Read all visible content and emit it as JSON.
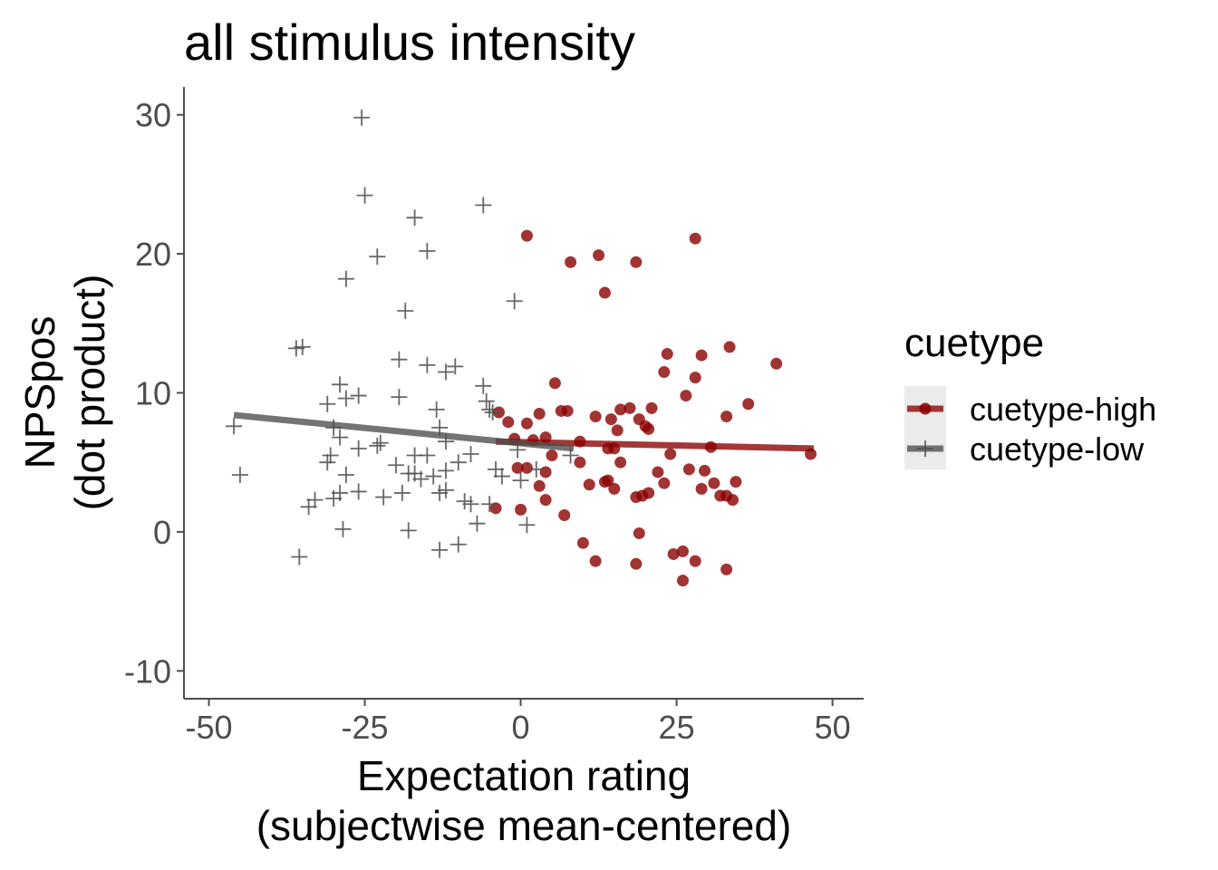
{
  "chart_data": {
    "type": "scatter",
    "title": "all stimulus intensity",
    "xlabel": [
      "Expectation rating",
      "(subjectwise mean-centered)"
    ],
    "ylabel": [
      "NPSpos",
      "(dot product)"
    ],
    "xlim": [
      -54,
      55
    ],
    "ylim": [
      -12,
      32
    ],
    "xticks": [
      -50,
      -25,
      0,
      25,
      50
    ],
    "xtick_labels": [
      "-50",
      "-25",
      "0",
      "25",
      "50"
    ],
    "yticks": [
      -10,
      0,
      10,
      20,
      30
    ],
    "ytick_labels": [
      "-10",
      "0",
      "10",
      "20",
      "30"
    ],
    "grid": false,
    "legend": {
      "title": "cuetype",
      "placement": "right"
    },
    "series": [
      {
        "name": "cuetype-high",
        "marker": "circle",
        "color": "#8B0000",
        "points": [
          [
            1,
            21.3
          ],
          [
            8,
            19.4
          ],
          [
            12.5,
            19.9
          ],
          [
            18.5,
            19.4
          ],
          [
            28,
            21.1
          ],
          [
            13.5,
            17.2
          ],
          [
            23.5,
            12.8
          ],
          [
            29,
            12.7
          ],
          [
            33.5,
            13.3
          ],
          [
            41,
            12.1
          ],
          [
            23,
            11.5
          ],
          [
            28,
            11.1
          ],
          [
            5.5,
            10.7
          ],
          [
            26.5,
            9.8
          ],
          [
            36.5,
            9.2
          ],
          [
            33,
            8.3
          ],
          [
            -3.5,
            8.6
          ],
          [
            3,
            8.5
          ],
          [
            6.5,
            8.7
          ],
          [
            7.5,
            8.7
          ],
          [
            12,
            8.3
          ],
          [
            14.5,
            8.1
          ],
          [
            16,
            8.8
          ],
          [
            17.5,
            8.9
          ],
          [
            19,
            8.1
          ],
          [
            21,
            8.9
          ],
          [
            -2,
            7.9
          ],
          [
            1,
            7.8
          ],
          [
            15.5,
            7.3
          ],
          [
            20,
            7.6
          ],
          [
            20.5,
            7.4
          ],
          [
            -1,
            6.7
          ],
          [
            2,
            6.6
          ],
          [
            4,
            6.8
          ],
          [
            9.5,
            6.5
          ],
          [
            14,
            6
          ],
          [
            15,
            6
          ],
          [
            24,
            5.6
          ],
          [
            30.5,
            6.1
          ],
          [
            46.5,
            5.6
          ],
          [
            5,
            5.5
          ],
          [
            16,
            5
          ],
          [
            -0.5,
            4.6
          ],
          [
            1,
            4.6
          ],
          [
            4,
            4.3
          ],
          [
            9.5,
            5
          ],
          [
            22,
            4.3
          ],
          [
            27,
            4.5
          ],
          [
            31,
            3.5
          ],
          [
            34.5,
            3.6
          ],
          [
            29,
            3.1
          ],
          [
            11,
            3.4
          ],
          [
            14,
            3.7
          ],
          [
            15,
            3.1
          ],
          [
            3,
            3.3
          ],
          [
            13.5,
            3.6
          ],
          [
            18.5,
            2.5
          ],
          [
            19.5,
            2.6
          ],
          [
            20.5,
            2.8
          ],
          [
            23,
            3.5
          ],
          [
            29.5,
            4.4
          ],
          [
            32,
            2.6
          ],
          [
            33,
            2.6
          ],
          [
            34,
            2.3
          ],
          [
            4,
            2.3
          ],
          [
            7,
            1.2
          ],
          [
            -4,
            1.7
          ],
          [
            0,
            1.6
          ],
          [
            19,
            -0.1
          ],
          [
            10,
            -0.8
          ],
          [
            12,
            -2.1
          ],
          [
            18.5,
            -2.3
          ],
          [
            24.5,
            -1.6
          ],
          [
            26,
            -1.4
          ],
          [
            28,
            -2.1
          ],
          [
            33,
            -2.7
          ],
          [
            26,
            -3.5
          ]
        ],
        "trend": {
          "x": [
            -4,
            47
          ],
          "y": [
            6.5,
            6.0
          ]
        }
      },
      {
        "name": "cuetype-low",
        "marker": "plus",
        "color": "#4d4d4d",
        "points": [
          [
            -25.5,
            29.8
          ],
          [
            -25,
            24.2
          ],
          [
            -6,
            23.5
          ],
          [
            -17,
            22.6
          ],
          [
            -15,
            20.2
          ],
          [
            -23,
            19.8
          ],
          [
            -28,
            18.2
          ],
          [
            -1,
            16.6
          ],
          [
            -18.5,
            15.9
          ],
          [
            -36,
            13.2
          ],
          [
            -35,
            13.3
          ],
          [
            -19.5,
            12.4
          ],
          [
            -15,
            12
          ],
          [
            -12,
            11.5
          ],
          [
            -10.5,
            11.9
          ],
          [
            -29,
            10.6
          ],
          [
            -6,
            10.5
          ],
          [
            -28,
            9.6
          ],
          [
            -31,
            9.2
          ],
          [
            -26,
            9.8
          ],
          [
            -19.5,
            9.7
          ],
          [
            -13.5,
            8.8
          ],
          [
            -5.5,
            9.4
          ],
          [
            -5,
            8.8
          ],
          [
            -4.5,
            8.6
          ],
          [
            -46,
            7.6
          ],
          [
            -30,
            7.5
          ],
          [
            -29,
            6.8
          ],
          [
            -22.5,
            6.4
          ],
          [
            -13,
            7.5
          ],
          [
            -12,
            6.5
          ],
          [
            -8,
            5.6
          ],
          [
            -0.5,
            5.9
          ],
          [
            -26,
            6
          ],
          [
            -23,
            6.2
          ],
          [
            -17,
            5.5
          ],
          [
            -15,
            5.5
          ],
          [
            -10,
            5
          ],
          [
            -30.5,
            5.5
          ],
          [
            -31,
            5
          ],
          [
            -20,
            4.8
          ],
          [
            -18,
            4.2
          ],
          [
            -14,
            4
          ],
          [
            -12,
            4.4
          ],
          [
            -45,
            4.1
          ],
          [
            -28,
            4.1
          ],
          [
            -17,
            4.2
          ],
          [
            -16,
            3.8
          ],
          [
            -4,
            4.5
          ],
          [
            -3,
            4
          ],
          [
            0,
            3.7
          ],
          [
            2.5,
            4.5
          ],
          [
            8,
            5.5
          ],
          [
            -33,
            2.3
          ],
          [
            -30,
            2.4
          ],
          [
            -29,
            2.8
          ],
          [
            -26,
            2.9
          ],
          [
            -22,
            2.5
          ],
          [
            -19,
            2.8
          ],
          [
            -13,
            2.8
          ],
          [
            -12,
            3
          ],
          [
            -9,
            2.2
          ],
          [
            -8,
            2
          ],
          [
            -5,
            2
          ],
          [
            -34,
            1.8
          ],
          [
            -7,
            0.6
          ],
          [
            -28.5,
            0.2
          ],
          [
            -18,
            0.1
          ],
          [
            1,
            0.5
          ],
          [
            -10,
            -0.9
          ],
          [
            -13,
            -1.3
          ],
          [
            -35.5,
            -1.8
          ]
        ],
        "trend": {
          "x": [
            -46,
            8.5
          ],
          "y": [
            8.4,
            6.0
          ]
        }
      }
    ]
  }
}
